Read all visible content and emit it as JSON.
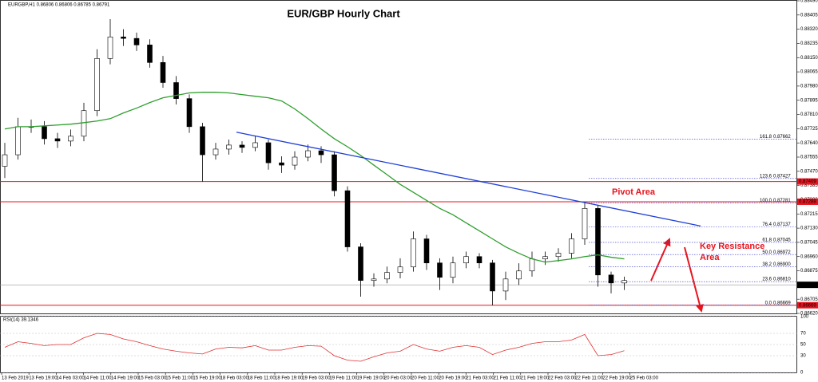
{
  "header": "EURGBP,H1 0.86806 0.86806 0.86785 0.86791",
  "chart_data": {
    "type": "candlestick",
    "title": "EUR/GBP Hourly Chart",
    "x_labels": [
      "13 Feb 2019",
      "13 Feb 19:00",
      "14 Feb 03:00",
      "14 Feb 11:00",
      "14 Feb 19:00",
      "15 Feb 03:00",
      "15 Feb 11:00",
      "15 Feb 19:00",
      "18 Feb 03:00",
      "18 Feb 11:00",
      "18 Feb 19:00",
      "19 Feb 03:00",
      "19 Feb 11:00",
      "19 Feb 19:00",
      "20 Feb 03:00",
      "20 Feb 11:00",
      "20 Feb 19:00",
      "21 Feb 03:00",
      "21 Feb 11:00",
      "21 Feb 19:00",
      "22 Feb 03:00",
      "22 Feb 11:00",
      "22 Feb 19:00",
      "25 Feb 03:00"
    ],
    "open": [
      0.875,
      0.87569,
      0.87737,
      0.87737,
      0.87665,
      0.87651,
      0.8768,
      0.87833,
      0.88145,
      0.88274,
      0.88265,
      0.88226,
      0.88121,
      0.88001,
      0.87905,
      0.87737,
      0.87569,
      0.87603,
      0.87627,
      0.87613,
      0.87641,
      0.87521,
      0.87507,
      0.87555,
      0.87593,
      0.87569,
      0.87354,
      0.87018,
      0.86817,
      0.86826,
      0.86865,
      0.86898,
      0.87066,
      0.86922,
      0.86836,
      0.86922,
      0.8696,
      0.86922,
      0.86754,
      0.86826,
      0.86874,
      0.86946,
      0.8696,
      0.8698,
      0.87066,
      0.87248,
      0.8685,
      0.86802
    ],
    "high": [
      0.8764,
      0.8779,
      0.8778,
      0.8777,
      0.877,
      0.8772,
      0.8788,
      0.882,
      0.8838,
      0.8832,
      0.883,
      0.8826,
      0.8816,
      0.8804,
      0.8793,
      0.8776,
      0.8764,
      0.8766,
      0.8765,
      0.8768,
      0.8766,
      0.8756,
      0.8759,
      0.8763,
      0.8762,
      0.8759,
      0.8738,
      0.8704,
      0.8686,
      0.869,
      0.8695,
      0.8711,
      0.8709,
      0.8695,
      0.8696,
      0.8699,
      0.8698,
      0.8694,
      0.8687,
      0.8692,
      0.8699,
      0.8699,
      0.8701,
      0.871,
      0.87288,
      0.8727,
      0.8687,
      0.8684
    ],
    "low": [
      0.8743,
      0.8754,
      0.877,
      0.8763,
      0.8761,
      0.8762,
      0.8765,
      0.878,
      0.8811,
      0.8822,
      0.8819,
      0.8809,
      0.8797,
      0.8787,
      0.877,
      0.87409,
      0.8754,
      0.8757,
      0.8758,
      0.8759,
      0.8748,
      0.8746,
      0.8748,
      0.8753,
      0.8752,
      0.8732,
      0.8699,
      0.8672,
      0.8678,
      0.868,
      0.8683,
      0.8687,
      0.8688,
      0.8676,
      0.868,
      0.8689,
      0.8689,
      0.86669,
      0.867,
      0.8679,
      0.8684,
      0.8691,
      0.8693,
      0.8695,
      0.8703,
      0.8678,
      0.8674,
      0.8676
    ],
    "close": [
      0.87569,
      0.87737,
      0.87737,
      0.87665,
      0.87651,
      0.8768,
      0.87833,
      0.88145,
      0.88274,
      0.88265,
      0.88226,
      0.88121,
      0.88001,
      0.87905,
      0.87737,
      0.87569,
      0.87603,
      0.87627,
      0.87613,
      0.87641,
      0.87521,
      0.87507,
      0.87555,
      0.87593,
      0.87569,
      0.87354,
      0.87018,
      0.86817,
      0.86826,
      0.86865,
      0.86898,
      0.87066,
      0.86922,
      0.86836,
      0.86922,
      0.8696,
      0.86922,
      0.86754,
      0.86826,
      0.86874,
      0.86946,
      0.8696,
      0.8698,
      0.87066,
      0.87248,
      0.8685,
      0.86802,
      0.86817
    ],
    "up_color": "#ffffff",
    "down_color": "#000000",
    "ylim": [
      0.8662,
      0.8849
    ],
    "yticks": [
      {
        "value": 0.8662,
        "label": "0.86620"
      },
      {
        "value": 0.86705,
        "label": "0.86705"
      },
      {
        "value": 0.8679,
        "label": "0.86790"
      },
      {
        "value": 0.86875,
        "label": "0.86875"
      },
      {
        "value": 0.8696,
        "label": "0.86960"
      },
      {
        "value": 0.87045,
        "label": "0.87045"
      },
      {
        "value": 0.8713,
        "label": "0.87130"
      },
      {
        "value": 0.87215,
        "label": "0.87215"
      },
      {
        "value": 0.873,
        "label": "0.87300"
      },
      {
        "value": 0.87385,
        "label": "0.87385"
      },
      {
        "value": 0.8747,
        "label": "0.87470"
      },
      {
        "value": 0.87555,
        "label": "0.87555"
      },
      {
        "value": 0.8764,
        "label": "0.87640"
      },
      {
        "value": 0.87725,
        "label": "0.87725"
      },
      {
        "value": 0.8781,
        "label": "0.87810"
      },
      {
        "value": 0.87895,
        "label": "0.87895"
      },
      {
        "value": 0.8798,
        "label": "0.87980"
      },
      {
        "value": 0.88065,
        "label": "0.88065"
      },
      {
        "value": 0.8815,
        "label": "0.88150"
      },
      {
        "value": 0.88235,
        "label": "0.88235"
      },
      {
        "value": 0.8832,
        "label": "0.88320"
      },
      {
        "value": 0.88405,
        "label": "0.88405"
      },
      {
        "value": 0.8849,
        "label": "0.88490"
      }
    ],
    "ma": {
      "color": "#2e9e2e",
      "values": [
        0.87723,
        0.87737,
        0.87737,
        0.87742,
        0.87747,
        0.87752,
        0.87761,
        0.87771,
        0.87785,
        0.87819,
        0.87848,
        0.87881,
        0.8791,
        0.87924,
        0.87939,
        0.87943,
        0.87943,
        0.87939,
        0.87929,
        0.87919,
        0.8791,
        0.87891,
        0.87843,
        0.87785,
        0.87723,
        0.87665,
        0.87617,
        0.87565,
        0.87507,
        0.8745,
        0.87392,
        0.87344,
        0.87296,
        0.87248,
        0.8721,
        0.87162,
        0.87114,
        0.87066,
        0.87018,
        0.8698,
        0.86946,
        0.86927,
        0.86936,
        0.86946,
        0.8696,
        0.8697,
        0.86956,
        0.86946
      ]
    },
    "trendline": {
      "color": "#1f3fd6",
      "values": [
        0.87704,
        0.87143
      ]
    },
    "levels": [
      {
        "value": 0.87409,
        "label": "0.87409"
      },
      {
        "value": 0.87288,
        "label": "0.87288"
      },
      {
        "value": 0.86669,
        "label": "0.86669"
      }
    ],
    "level_color": "#e8141e",
    "current_price": {
      "value": 0.86791,
      "label": "0.86791"
    },
    "fib": [
      {
        "level": "161.8",
        "value": 0.87662,
        "label": "0.87662"
      },
      {
        "level": "123.6",
        "value": 0.87427,
        "label": "0.87427"
      },
      {
        "level": "100.0",
        "value": 0.87281,
        "label": "0.87281"
      },
      {
        "level": "76.4",
        "value": 0.87137,
        "label": "0.87137"
      },
      {
        "level": "61.8",
        "value": 0.87045,
        "label": "0.87045"
      },
      {
        "level": "50.0",
        "value": 0.86972,
        "label": "0.86972"
      },
      {
        "level": "38.2",
        "value": 0.869,
        "label": "0.86900"
      },
      {
        "level": "23.6",
        "value": 0.8681,
        "label": "0.86810"
      },
      {
        "level": "0.0",
        "value": 0.86669,
        "label": "0.86669"
      }
    ],
    "annotations": [
      "Pivot Area",
      "Key Resistance",
      "Area"
    ],
    "rsi": {
      "label": "RSI(14) 39.1346",
      "color": "#e03030",
      "ylim": [
        0,
        100
      ],
      "yticks": [
        0,
        30,
        50,
        70,
        100
      ],
      "values": [
        45,
        55,
        52,
        48,
        50,
        50,
        62,
        70,
        68,
        60,
        55,
        48,
        42,
        38,
        35,
        33,
        42,
        45,
        44,
        48,
        40,
        40,
        45,
        48,
        47,
        30,
        22,
        20,
        28,
        35,
        38,
        50,
        42,
        38,
        45,
        48,
        45,
        32,
        40,
        45,
        52,
        55,
        55,
        58,
        68,
        30,
        32,
        39
      ]
    }
  }
}
